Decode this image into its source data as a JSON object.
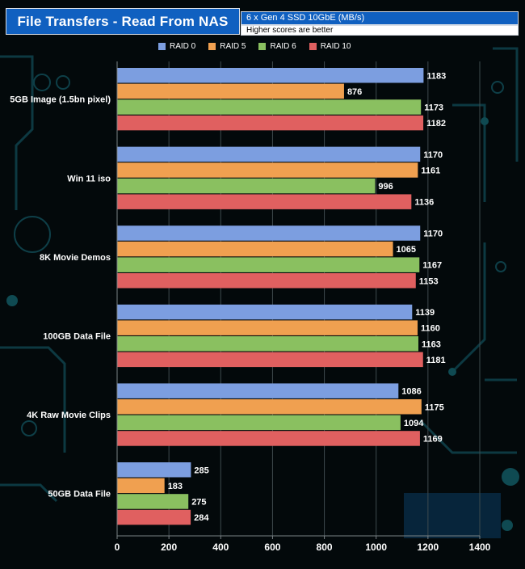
{
  "header": {
    "title": "File Transfers - Read From  NAS",
    "subtitle": "6 x Gen 4 SSD 10GbE (MB/s)",
    "note": "Higher scores are better"
  },
  "chart_data": {
    "type": "bar",
    "orientation": "horizontal",
    "title": "File Transfers - Read From  NAS",
    "subtitle": "6 x Gen 4 SSD 10GbE (MB/s)",
    "categories": [
      "5GB Image (1.5bn pixel)",
      "Win 11 iso",
      "8K Movie Demos",
      "100GB  Data File",
      "4K Raw Movie Clips",
      "50GB Data File"
    ],
    "series": [
      {
        "name": "RAID 0",
        "color": "#7c9ee0",
        "values": [
          1183,
          1170,
          1170,
          1139,
          1086,
          285
        ]
      },
      {
        "name": "RAID 5",
        "color": "#f0a050",
        "values": [
          876,
          1161,
          1065,
          1160,
          1175,
          183
        ]
      },
      {
        "name": "RAID 6",
        "color": "#8ac060",
        "values": [
          1173,
          996,
          1167,
          1163,
          1094,
          275
        ]
      },
      {
        "name": "RAID 10",
        "color": "#e06060",
        "values": [
          1182,
          1136,
          1153,
          1181,
          1169,
          284
        ]
      }
    ],
    "xlim": [
      0,
      1400
    ],
    "xticks": [
      "0",
      "200",
      "400",
      "600",
      "800",
      "1000",
      "1200",
      "1400"
    ],
    "xlabel": "",
    "ylabel": "",
    "legend_position": "top",
    "grid": true
  }
}
